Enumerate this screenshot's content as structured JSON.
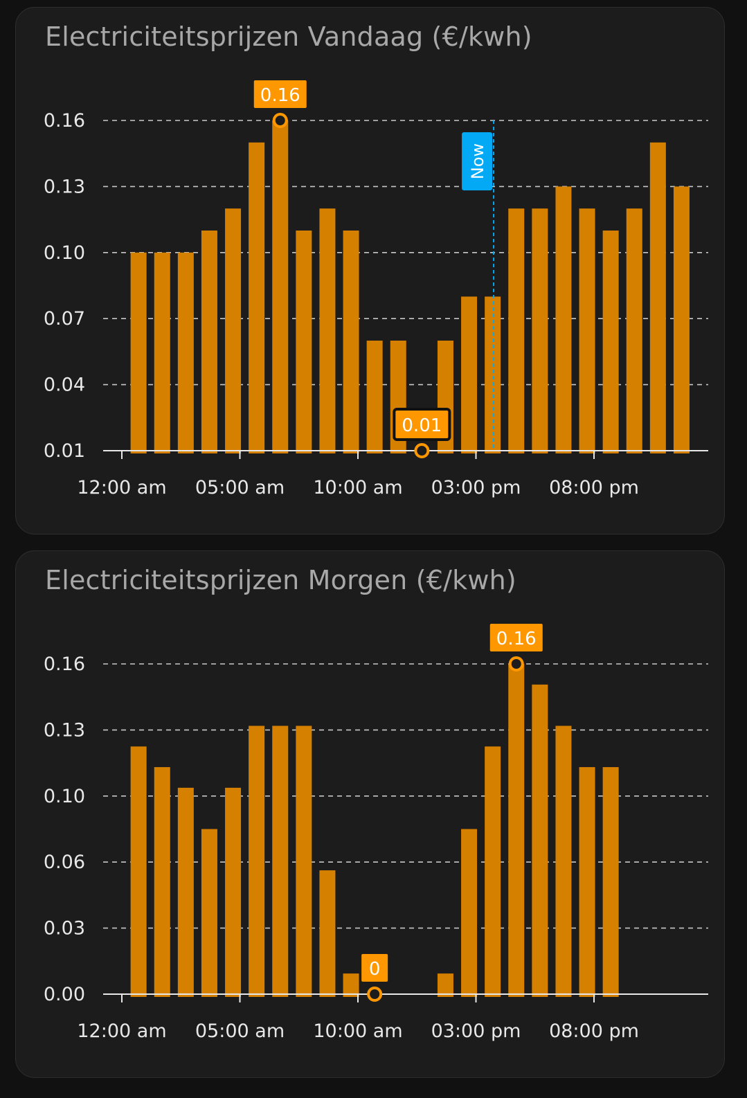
{
  "colors": {
    "bar": "#d68000",
    "marker": "#ff9800",
    "now": "#03a9f4",
    "grid": "#e8e8e8",
    "card": "#1c1c1c"
  },
  "chart_data": [
    {
      "type": "bar",
      "title": "Electriciteitsprijzen Vandaag (€/kwh)",
      "x": [
        0,
        1,
        2,
        3,
        4,
        5,
        6,
        7,
        8,
        9,
        10,
        11,
        12,
        13,
        14,
        15,
        16,
        17,
        18,
        19,
        20,
        21,
        22,
        23
      ],
      "values": [
        0.1,
        0.1,
        0.1,
        0.11,
        0.12,
        0.15,
        0.16,
        0.11,
        0.12,
        0.11,
        0.06,
        0.06,
        0.01,
        0.06,
        0.08,
        0.08,
        0.12,
        0.12,
        0.13,
        0.12,
        0.11,
        0.12,
        0.15,
        0.13
      ],
      "y_ticks": [
        "0.16",
        "0.13",
        "0.10",
        "0.07",
        "0.04",
        "0.01"
      ],
      "x_ticks": [
        "12:00 am",
        "05:00 am",
        "10:00 am",
        "03:00 pm",
        "08:00 pm"
      ],
      "ylim": [
        0.01,
        0.16
      ],
      "grid": true,
      "max_marker": {
        "hour": 6,
        "label": "0.16"
      },
      "min_marker": {
        "hour": 12,
        "label": "0.01"
      },
      "now": {
        "hour": 15.75,
        "label": "Now"
      }
    },
    {
      "type": "bar",
      "title": "Electriciteitsprijzen Morgen (€/kwh)",
      "x": [
        0,
        1,
        2,
        3,
        4,
        5,
        6,
        7,
        8,
        9,
        10,
        11,
        12,
        13,
        14,
        15,
        16,
        17,
        18,
        19,
        20,
        21,
        22,
        23
      ],
      "values": [
        0.12,
        0.11,
        0.1,
        0.08,
        0.1,
        0.13,
        0.13,
        0.13,
        0.06,
        0.01,
        0.0,
        0.0,
        0.0,
        0.01,
        0.08,
        0.12,
        0.16,
        0.15,
        0.13,
        0.11,
        0.11,
        0.0,
        0.0,
        0.0
      ],
      "y_ticks": [
        "0.16",
        "0.13",
        "0.10",
        "0.06",
        "0.03",
        "0.00"
      ],
      "x_ticks": [
        "12:00 am",
        "05:00 am",
        "10:00 am",
        "03:00 pm",
        "08:00 pm"
      ],
      "ylim": [
        0.0,
        0.16
      ],
      "grid": true,
      "max_marker": {
        "hour": 16,
        "label": "0.16"
      },
      "min_marker": {
        "hour": 10,
        "label": "0"
      }
    }
  ]
}
